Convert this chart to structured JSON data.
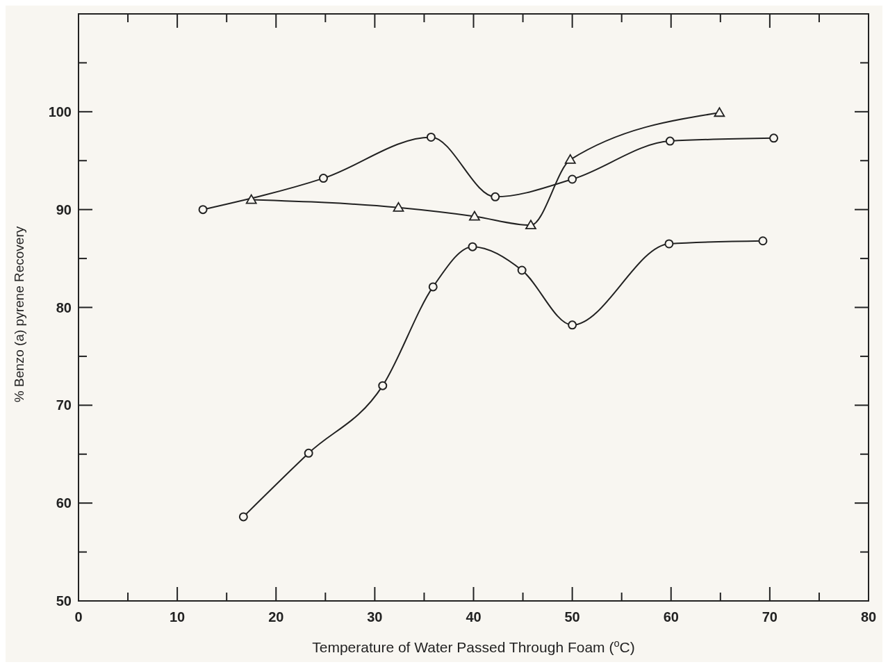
{
  "chart_data": {
    "type": "line",
    "xlabel": "Temperature of Water Passed Through Foam ($^{o}$C)",
    "ylabel": "% Benzo (a) pyrene Recovery",
    "xlim": [
      0,
      80
    ],
    "xticks": [
      0,
      {
        "value": 5,
        "label": null
      },
      10,
      {
        "value": 15,
        "label": null
      },
      20,
      {
        "value": 25,
        "label": null
      },
      30,
      {
        "value": 35,
        "label": null
      },
      40,
      {
        "value": 45,
        "label": null
      },
      50,
      {
        "value": 55,
        "label": null
      },
      60,
      {
        "value": 65,
        "label": null
      },
      70,
      {
        "value": 75,
        "label": null
      },
      80
    ],
    "ylim": [
      50,
      110
    ],
    "yticks": [
      50,
      {
        "value": 55,
        "label": null
      },
      60,
      {
        "value": 65,
        "label": null
      },
      70,
      {
        "value": 75,
        "label": null
      },
      80,
      {
        "value": 85,
        "label": null
      },
      90,
      {
        "value": 95,
        "label": null
      },
      100,
      {
        "value": 105,
        "label": null
      }
    ],
    "grid": false,
    "line_style": "solid",
    "series": [
      {
        "color": "#222222",
        "marker": "circle",
        "x": [
          12.6,
          24.8,
          35.7,
          42.2,
          50.0,
          59.9,
          70.4
        ],
        "values": [
          90.0,
          93.2,
          97.4,
          91.3,
          93.1,
          97.0,
          97.3
        ]
      },
      {
        "color": "#222222",
        "marker": "triangle",
        "x": [
          17.5,
          32.4,
          40.1,
          45.8,
          49.8,
          64.9
        ],
        "values": [
          91.0,
          90.2,
          89.3,
          88.4,
          95.1,
          99.9
        ]
      },
      {
        "color": "#222222",
        "marker": "circle",
        "x": [
          16.7,
          23.3,
          30.8,
          35.9,
          39.9,
          44.9,
          50.0,
          59.8,
          69.3
        ],
        "values": [
          58.6,
          65.1,
          72.0,
          82.1,
          86.2,
          83.8,
          78.2,
          86.5,
          86.8
        ]
      }
    ]
  }
}
